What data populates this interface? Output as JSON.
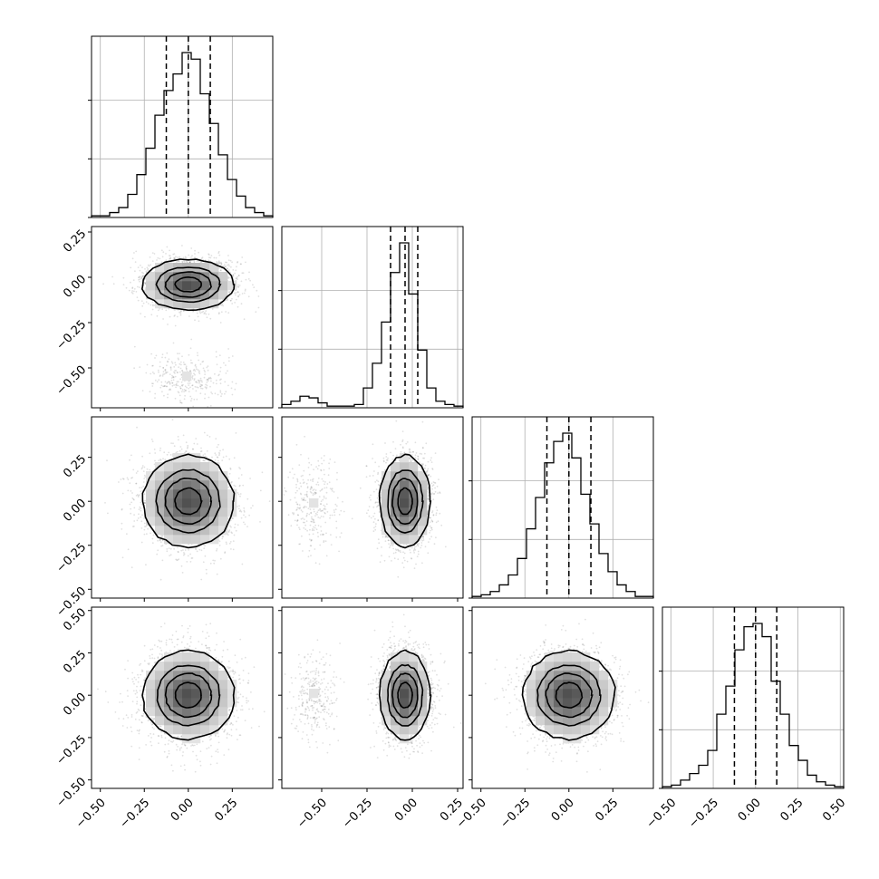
{
  "chart_data": {
    "type": "corner",
    "grid": true,
    "params": [
      {
        "index": 0,
        "range": [
          -0.55,
          0.48
        ],
        "ticks": [
          -0.5,
          -0.25,
          0.0,
          0.25
        ],
        "tick_labels": [
          "−0.50",
          "−0.25",
          "0.00",
          "0.25"
        ],
        "quantiles": [
          -0.125,
          0.0,
          0.125
        ]
      },
      {
        "index": 1,
        "range": [
          -0.72,
          0.28
        ],
        "ticks": [
          -0.5,
          -0.25,
          0.0,
          0.25
        ],
        "tick_labels": [
          "−0.50",
          "−0.25",
          "0.00",
          "0.25"
        ],
        "quantiles": [
          -0.12,
          -0.04,
          0.03
        ]
      },
      {
        "index": 2,
        "range": [
          -0.55,
          0.48
        ],
        "ticks": [
          -0.5,
          -0.25,
          0.0,
          0.25
        ],
        "tick_labels": [
          "−0.50",
          "−0.25",
          "0.00",
          "0.25"
        ],
        "quantiles": [
          -0.125,
          0.0,
          0.125
        ]
      },
      {
        "index": 3,
        "range": [
          -0.55,
          0.52
        ],
        "ticks": [
          -0.5,
          -0.25,
          0.0,
          0.25,
          0.5
        ],
        "tick_labels": [
          "−0.50",
          "−0.25",
          "0.00",
          "0.25",
          "0.50"
        ],
        "quantiles": [
          -0.125,
          0.0,
          0.125
        ]
      }
    ],
    "histograms": [
      {
        "param": 0,
        "counts": [
          0.01,
          0.01,
          0.03,
          0.06,
          0.14,
          0.26,
          0.42,
          0.62,
          0.77,
          0.87,
          1.0,
          0.96,
          0.75,
          0.57,
          0.38,
          0.23,
          0.13,
          0.06,
          0.03,
          0.01
        ],
        "y_ticks": [
          0.0,
          0.33,
          0.66
        ]
      },
      {
        "param": 1,
        "counts": [
          0.02,
          0.04,
          0.07,
          0.06,
          0.03,
          0.01,
          0.01,
          0.01,
          0.02,
          0.12,
          0.27,
          0.52,
          0.82,
          1.0,
          0.69,
          0.35,
          0.12,
          0.04,
          0.02,
          0.01
        ],
        "y_ticks": [
          0.0,
          0.33,
          0.66
        ]
      },
      {
        "param": 2,
        "counts": [
          0.01,
          0.02,
          0.04,
          0.08,
          0.14,
          0.24,
          0.42,
          0.61,
          0.82,
          0.95,
          1.0,
          0.85,
          0.63,
          0.45,
          0.27,
          0.16,
          0.08,
          0.04,
          0.01,
          0.01
        ],
        "y_ticks": [
          0.0,
          0.33,
          0.66
        ]
      },
      {
        "param": 3,
        "counts": [
          0.01,
          0.02,
          0.05,
          0.09,
          0.14,
          0.23,
          0.45,
          0.62,
          0.84,
          0.98,
          1.0,
          0.92,
          0.65,
          0.45,
          0.26,
          0.17,
          0.08,
          0.04,
          0.02,
          0.01
        ],
        "y_ticks": [
          0.0,
          0.33,
          0.66
        ]
      }
    ],
    "pairs": [
      {
        "x": 0,
        "y": 1,
        "components": [
          {
            "mx": 0.0,
            "my": -0.04,
            "sx": 0.13,
            "sy": 0.07,
            "w": 0.88
          },
          {
            "mx": 0.0,
            "my": -0.55,
            "sx": 0.13,
            "sy": 0.07,
            "w": 0.12
          }
        ]
      },
      {
        "x": 0,
        "y": 2,
        "components": [
          {
            "mx": 0.0,
            "my": 0.0,
            "sx": 0.13,
            "sy": 0.13,
            "w": 1.0
          }
        ]
      },
      {
        "x": 1,
        "y": 2,
        "components": [
          {
            "mx": -0.04,
            "my": 0.0,
            "sx": 0.07,
            "sy": 0.13,
            "w": 0.88
          },
          {
            "mx": -0.55,
            "my": 0.0,
            "sx": 0.07,
            "sy": 0.13,
            "w": 0.12
          }
        ]
      },
      {
        "x": 0,
        "y": 3,
        "components": [
          {
            "mx": 0.0,
            "my": 0.0,
            "sx": 0.13,
            "sy": 0.13,
            "w": 1.0
          }
        ]
      },
      {
        "x": 1,
        "y": 3,
        "components": [
          {
            "mx": -0.04,
            "my": 0.0,
            "sx": 0.07,
            "sy": 0.13,
            "w": 0.88
          },
          {
            "mx": -0.55,
            "my": 0.0,
            "sx": 0.07,
            "sy": 0.13,
            "w": 0.12
          }
        ]
      },
      {
        "x": 2,
        "y": 3,
        "components": [
          {
            "mx": 0.0,
            "my": 0.0,
            "sx": 0.13,
            "sy": 0.13,
            "w": 1.0
          }
        ]
      }
    ]
  }
}
